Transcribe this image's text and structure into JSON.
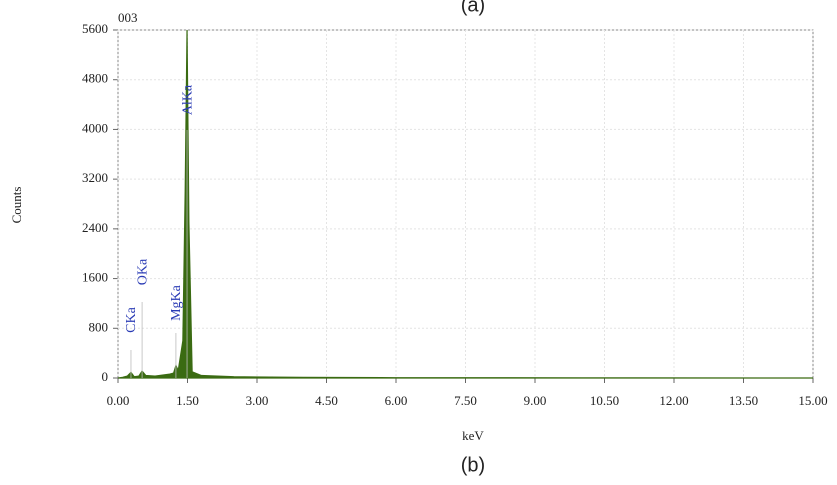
{
  "chart_data": {
    "type": "area",
    "title": "(a)",
    "caption": "(b)",
    "sample_label": "003",
    "x_label": "keV",
    "y_label": "Counts",
    "x": [
      0,
      0.1,
      0.2,
      0.28,
      0.35,
      0.45,
      0.52,
      0.6,
      0.8,
      1.0,
      1.1,
      1.2,
      1.25,
      1.3,
      1.4,
      1.45,
      1.49,
      1.53,
      1.6,
      1.8,
      2.5,
      4,
      6,
      10,
      15
    ],
    "series": [
      {
        "name": "003",
        "color": "#3a6b12",
        "values": [
          0,
          10,
          30,
          90,
          20,
          30,
          110,
          40,
          30,
          50,
          60,
          80,
          200,
          120,
          600,
          3000,
          5600,
          2500,
          100,
          40,
          20,
          10,
          5,
          3,
          0
        ]
      }
    ],
    "annotations": [
      {
        "text": "CKa",
        "x": 0.28
      },
      {
        "text": "OKa",
        "x": 0.52
      },
      {
        "text": "MgKa",
        "x": 1.25
      },
      {
        "text": "AlKa",
        "x": 1.49
      }
    ],
    "xlim": [
      0,
      15
    ],
    "ylim": [
      0,
      5600
    ],
    "xticks": [
      {
        "value": 0,
        "label": "0.00"
      },
      {
        "value": 1.5,
        "label": "1.50"
      },
      {
        "value": 3,
        "label": "3.00"
      },
      {
        "value": 4.5,
        "label": "4.50"
      },
      {
        "value": 6,
        "label": "6.00"
      },
      {
        "value": 7.5,
        "label": "7.50"
      },
      {
        "value": 9,
        "label": "9.00"
      },
      {
        "value": 10.5,
        "label": "10.50"
      },
      {
        "value": 12,
        "label": "12.00"
      },
      {
        "value": 13.5,
        "label": "13.50"
      },
      {
        "value": 15,
        "label": "15.00"
      }
    ],
    "yticks": [
      0,
      800,
      1600,
      2400,
      3200,
      4000,
      4800,
      5600
    ],
    "grid": true
  }
}
